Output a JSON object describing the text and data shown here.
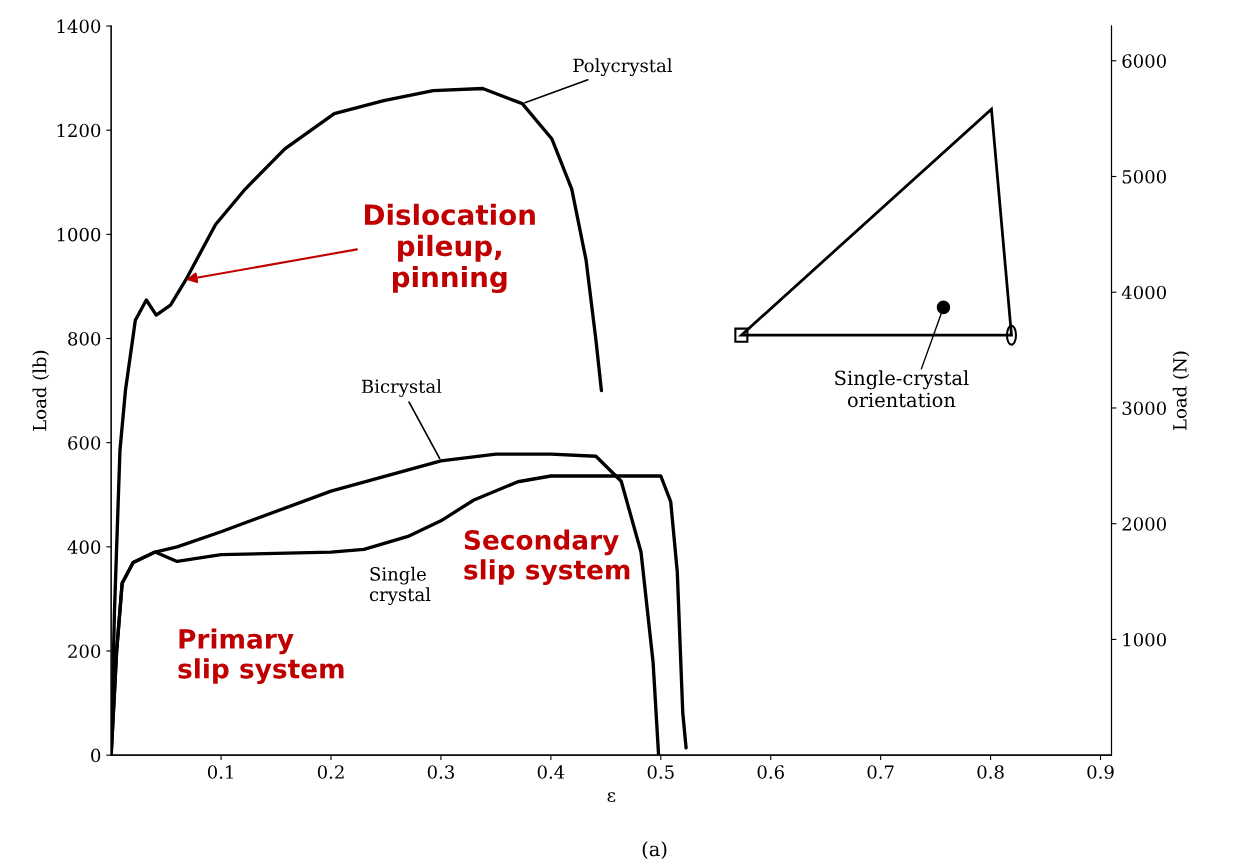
{
  "chart_data": {
    "type": "line",
    "xlabel": "ε",
    "ylabel": "Load (lb)",
    "y2label": "Load (N)",
    "xlim": [
      0,
      0.91
    ],
    "xticks": [
      0.1,
      0.2,
      0.3,
      0.4,
      0.5,
      0.6,
      0.7,
      0.8,
      0.9
    ],
    "ylim": [
      0,
      1400
    ],
    "yticks": [
      0,
      200,
      400,
      600,
      800,
      1000,
      1200,
      1400
    ],
    "y2lim": [
      0,
      6300
    ],
    "y2ticks": [
      1000,
      2000,
      3000,
      4000,
      5000,
      6000
    ],
    "grid": false,
    "legend": false,
    "marker": "none",
    "line_style": "solid",
    "series": [
      {
        "name": "Polycrystal",
        "color": "#000000",
        "x": [
          0,
          0.003,
          0.008,
          0.013,
          0.022,
          0.032,
          0.041,
          0.054,
          0.068,
          0.095,
          0.122,
          0.158,
          0.203,
          0.248,
          0.293,
          0.338,
          0.374,
          0.401,
          0.419,
          0.432,
          0.441,
          0.446
        ],
        "values": [
          0,
          275,
          585,
          700,
          835,
          874,
          845,
          864,
          913,
          1019,
          1087,
          1164,
          1232,
          1257,
          1276,
          1280,
          1251,
          1183,
          1087,
          951,
          797,
          700
        ]
      },
      {
        "name": "Bicrystal",
        "color": "#000000",
        "x": [
          0,
          0.005,
          0.01,
          0.02,
          0.04,
          0.06,
          0.1,
          0.2,
          0.3,
          0.35,
          0.4,
          0.441,
          0.464,
          0.482,
          0.493,
          0.498
        ],
        "values": [
          0,
          200,
          330,
          370,
          390,
          400,
          429,
          507,
          565,
          578,
          578,
          574,
          526,
          390,
          178,
          0
        ]
      },
      {
        "name": "Single crystal",
        "color": "#000000",
        "x": [
          0,
          0.005,
          0.01,
          0.02,
          0.04,
          0.06,
          0.1,
          0.2,
          0.23,
          0.27,
          0.3,
          0.33,
          0.37,
          0.4,
          0.45,
          0.5,
          0.509,
          0.515,
          0.52,
          0.523
        ],
        "values": [
          0,
          200,
          330,
          370,
          390,
          372,
          385,
          390,
          395,
          420,
          450,
          490,
          525,
          536,
          536,
          536,
          487,
          352,
          81,
          14
        ]
      }
    ],
    "annotations": [
      {
        "text": "Dislocation\npileup,\npinning",
        "x": 0.068,
        "y": 913
      },
      {
        "text": "Primary\nslip system",
        "x": 0.15,
        "y": 390
      },
      {
        "text": "Secondary\nslip system",
        "x": 0.38,
        "y": 530
      },
      "Single-crystal\norientation",
      "(a)"
    ]
  }
}
